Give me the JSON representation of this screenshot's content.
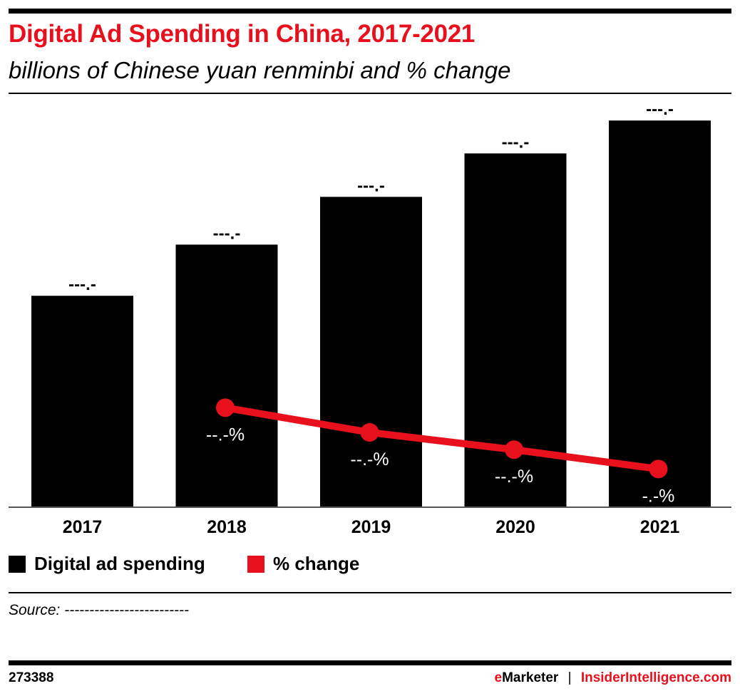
{
  "chart_data": {
    "type": "bar",
    "title": "Digital Ad Spending in China, 2017-2021",
    "subtitle": "billions of Chinese yuan renminbi and % change",
    "categories": [
      "2017",
      "2018",
      "2019",
      "2020",
      "2021"
    ],
    "series": [
      {
        "name": "Digital ad spending",
        "type": "bar",
        "color": "#000000",
        "values": [
          300,
          372.6,
          440.4,
          502,
          548.7
        ],
        "labels": [
          "---.-",
          "---.-",
          "---.-",
          "---.-",
          "---.-"
        ]
      },
      {
        "name": "% change",
        "type": "line",
        "color": "#e8101c",
        "values": [
          null,
          24.2,
          18.2,
          14.0,
          9.3
        ],
        "labels": [
          null,
          "--.-%",
          "--.-%",
          "--.-%",
          "-.-%"
        ]
      }
    ],
    "ylim": [
      0,
      560
    ],
    "ylim_pct": [
      0,
      96
    ],
    "grid": false,
    "legend": "bottom-left",
    "values_masked": true
  },
  "source": "Source: -------------------------",
  "chart_id": "273388",
  "brand": {
    "left_e": "e",
    "left_rest": "Marketer",
    "sep": "|",
    "right": "InsiderIntelligence.com"
  }
}
